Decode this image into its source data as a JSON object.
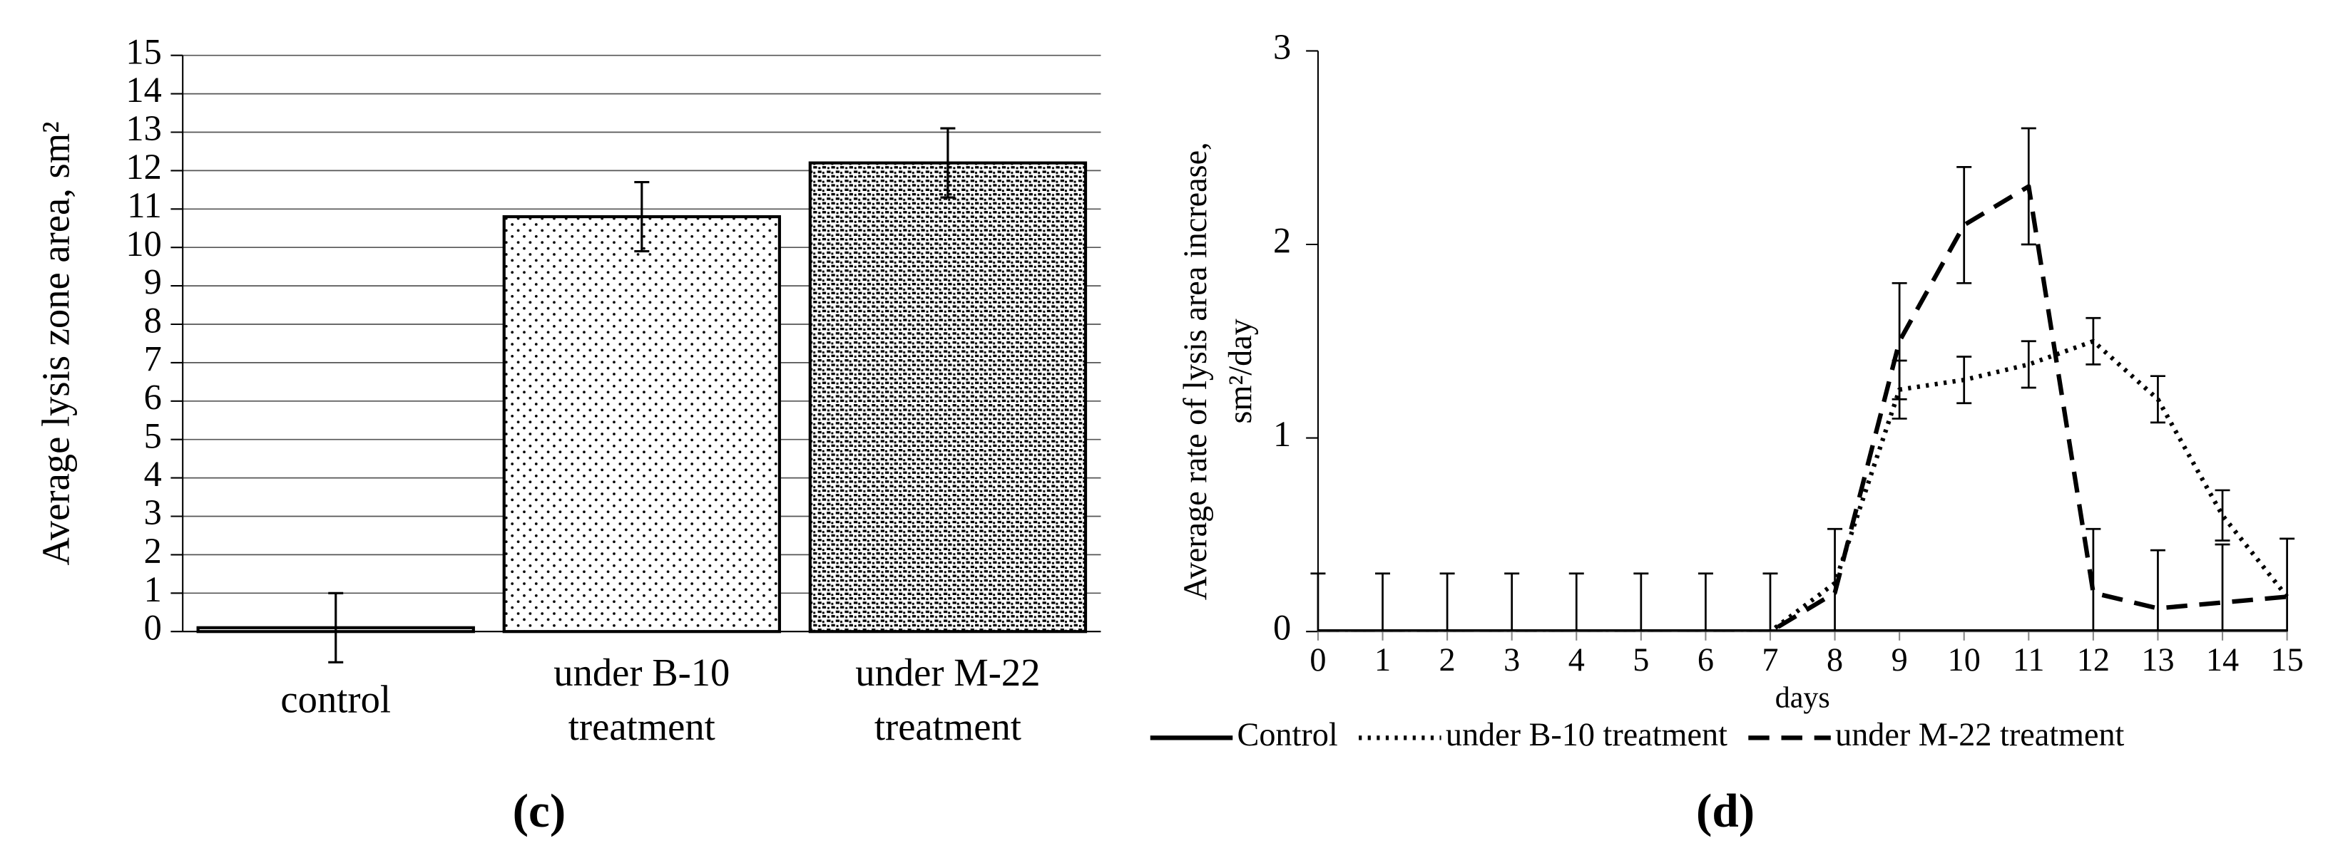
{
  "chart_data": [
    {
      "type": "bar",
      "label": "(c)",
      "ylabel": "Average lysis zone area, sm²",
      "categories": [
        "control",
        "under B-10 treatment",
        "under M-22 treatment"
      ],
      "values": [
        0.1,
        10.8,
        12.2
      ],
      "errors": [
        0.9,
        0.9,
        0.9
      ],
      "patterns": [
        "none",
        "dots",
        "dense"
      ],
      "color": "#000000",
      "ylim": [
        0,
        15
      ],
      "yticks": [
        0,
        1,
        2,
        3,
        4,
        5,
        6,
        7,
        8,
        9,
        10,
        11,
        12,
        13,
        14,
        15
      ],
      "grid": true
    },
    {
      "type": "line",
      "label": "(d)",
      "ylabel": "Average rate of lysis area increase, sm²/day",
      "xlabel": "days",
      "x": [
        0,
        1,
        2,
        3,
        4,
        5,
        6,
        7,
        8,
        9,
        10,
        11,
        12,
        13,
        14,
        15
      ],
      "series": [
        {
          "name": "Control",
          "color": "#000000",
          "dash": "solid",
          "values": [
            0,
            0,
            0,
            0,
            0,
            0,
            0,
            0,
            0,
            0,
            0,
            0,
            0,
            0,
            0,
            0
          ],
          "errors": [
            0.3,
            0.3,
            0.3,
            0.3,
            0.3,
            0.3,
            0.3,
            0.3,
            null,
            null,
            null,
            null,
            null,
            null,
            null,
            null
          ]
        },
        {
          "name": "under B-10 treatment",
          "color": "#000000",
          "dash": "dotted",
          "values": [
            0,
            0,
            0,
            0,
            0,
            0,
            0,
            0,
            0.25,
            1.25,
            1.3,
            1.38,
            1.5,
            1.2,
            0.6,
            0.18
          ],
          "errors": [
            null,
            null,
            null,
            null,
            null,
            null,
            null,
            null,
            0.28,
            0.15,
            0.12,
            0.12,
            0.12,
            0.12,
            0.13,
            0.3
          ]
        },
        {
          "name": "under M-22 treatment",
          "color": "#000000",
          "dash": "dashed",
          "values": [
            0,
            0,
            0,
            0,
            0,
            0,
            0,
            0,
            0.2,
            1.5,
            2.1,
            2.3,
            0.2,
            0.12,
            0.15,
            0.18
          ],
          "errors": [
            null,
            null,
            null,
            null,
            null,
            null,
            null,
            null,
            null,
            0.3,
            0.3,
            0.3,
            0.33,
            0.3,
            0.3,
            null
          ]
        }
      ],
      "xlim": [
        0,
        15
      ],
      "xticks": [
        0,
        1,
        2,
        3,
        4,
        5,
        6,
        7,
        8,
        9,
        10,
        11,
        12,
        13,
        14,
        15
      ],
      "ylim": [
        0,
        3
      ],
      "yticks": [
        0,
        1,
        2,
        3
      ],
      "legend": "bottom"
    }
  ]
}
